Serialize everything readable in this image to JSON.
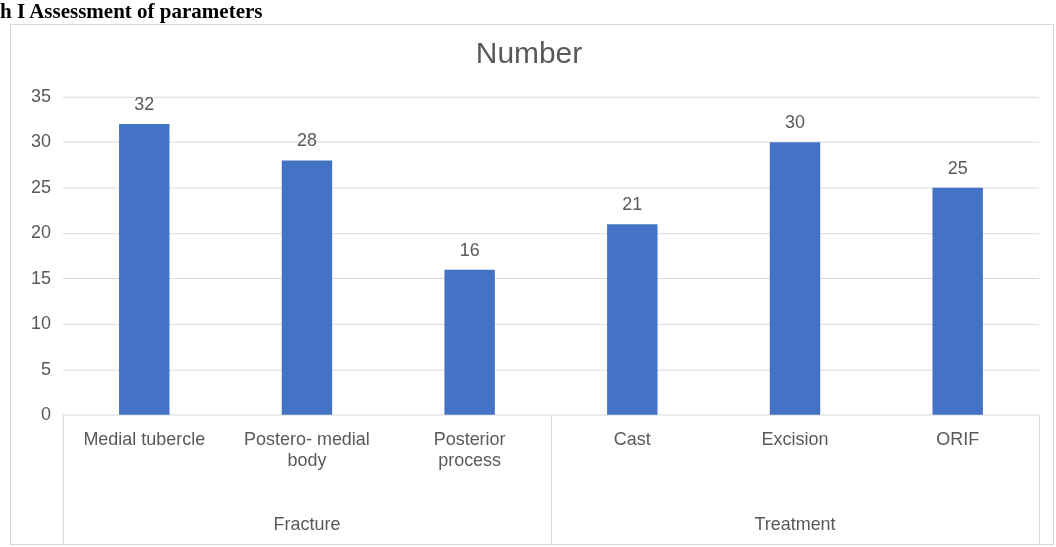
{
  "chart_data": {
    "type": "bar",
    "title": "Number",
    "categories": [
      "Medial tubercle",
      "Postero- medial body",
      "Posterior process",
      "Cast",
      "Excision",
      "ORIF"
    ],
    "values": [
      32,
      28,
      16,
      21,
      30,
      25
    ],
    "color": "#4472c4",
    "ylim": [
      0,
      35
    ],
    "yticks": [
      0,
      5,
      10,
      15,
      20,
      25,
      30,
      35
    ],
    "grid": "y",
    "data_labels": true,
    "legend": false,
    "annotations": [
      "h I Assessment of parameters",
      "Fracture",
      "Treatment"
    ]
  }
}
